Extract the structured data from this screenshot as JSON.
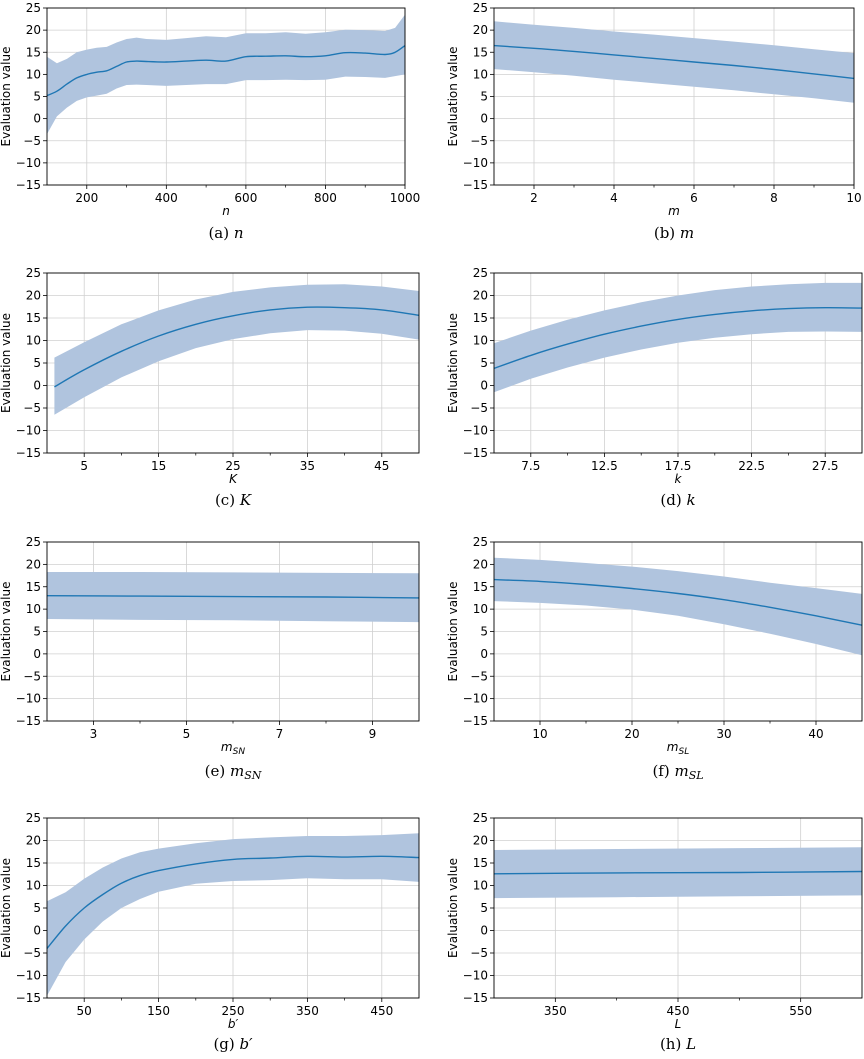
{
  "chart_data": [
    {
      "id": "a",
      "type": "line",
      "ylabel": "Evaluation value",
      "xlabel": "n",
      "caption_prefix": "(a) ",
      "caption_var": "n",
      "xlim": [
        100,
        1000
      ],
      "ylim": [
        -15,
        25
      ],
      "xticks": [
        200,
        400,
        600,
        800,
        1000
      ],
      "xticklabels": [
        "200",
        "400",
        "600",
        "800",
        "1000"
      ],
      "minor_xticks": [
        300,
        500,
        700,
        900
      ],
      "yticks": [
        -15,
        -10,
        -5,
        0,
        5,
        10,
        15,
        20,
        25
      ],
      "yticklabels": [
        "−15",
        "−10",
        "−5",
        "0",
        "5",
        "10",
        "15",
        "20",
        "25"
      ],
      "mean": {
        "x": [
          100,
          125,
          150,
          175,
          200,
          225,
          250,
          275,
          300,
          325,
          350,
          400,
          450,
          500,
          550,
          600,
          650,
          700,
          750,
          800,
          850,
          900,
          950,
          975,
          1000
        ],
        "y": [
          5.2,
          6.2,
          7.8,
          9.2,
          10.0,
          10.5,
          10.8,
          11.8,
          12.8,
          13.0,
          12.9,
          12.8,
          13.0,
          13.2,
          13.0,
          14.0,
          14.1,
          14.2,
          14.0,
          14.2,
          14.9,
          14.8,
          14.5,
          15.0,
          16.5
        ]
      },
      "band": {
        "x": [
          100,
          125,
          150,
          175,
          200,
          225,
          250,
          275,
          300,
          325,
          350,
          400,
          450,
          500,
          550,
          600,
          650,
          700,
          750,
          800,
          850,
          900,
          950,
          975,
          1000
        ],
        "lower": [
          -3.5,
          0.5,
          2.5,
          4.0,
          4.8,
          5.2,
          5.6,
          6.8,
          7.6,
          7.7,
          7.6,
          7.4,
          7.6,
          7.8,
          7.8,
          8.7,
          8.7,
          8.8,
          8.7,
          8.8,
          9.5,
          9.4,
          9.2,
          9.6,
          10.0
        ],
        "upper": [
          14.0,
          12.5,
          13.5,
          15.0,
          15.6,
          16.0,
          16.2,
          17.2,
          18.0,
          18.3,
          18.0,
          17.8,
          18.2,
          18.6,
          18.4,
          19.3,
          19.3,
          19.5,
          19.2,
          19.5,
          20.1,
          20.0,
          19.8,
          20.5,
          23.5
        ]
      }
    },
    {
      "id": "b",
      "type": "line",
      "ylabel": "Evaluation value",
      "xlabel": "m",
      "caption_prefix": "(b) ",
      "caption_var": "m",
      "xlim": [
        1,
        10
      ],
      "ylim": [
        -15,
        25
      ],
      "xticks": [
        2,
        4,
        6,
        8,
        10
      ],
      "xticklabels": [
        "2",
        "4",
        "6",
        "8",
        "10"
      ],
      "minor_xticks": [
        3,
        5,
        7,
        9
      ],
      "yticks": [
        -15,
        -10,
        -5,
        0,
        5,
        10,
        15,
        20,
        25
      ],
      "yticklabels": [
        "−15",
        "−10",
        "−5",
        "0",
        "5",
        "10",
        "15",
        "20",
        "25"
      ],
      "mean": {
        "x": [
          1,
          2,
          3,
          4,
          5,
          6,
          7,
          8,
          9,
          10
        ],
        "y": [
          16.5,
          15.9,
          15.2,
          14.4,
          13.6,
          12.8,
          12.0,
          11.1,
          10.1,
          9.1
        ]
      },
      "band": {
        "x": [
          1,
          2,
          3,
          4,
          5,
          6,
          7,
          8,
          9,
          10
        ],
        "lower": [
          11.2,
          10.5,
          9.7,
          8.8,
          8.0,
          7.2,
          6.4,
          5.5,
          4.6,
          3.6
        ],
        "upper": [
          22.0,
          21.2,
          20.5,
          19.7,
          19.0,
          18.2,
          17.4,
          16.6,
          15.7,
          14.8
        ]
      }
    },
    {
      "id": "c",
      "type": "line",
      "ylabel": "Evaluation value",
      "xlabel": "K",
      "caption_prefix": "(c) ",
      "caption_var": "K",
      "xlim": [
        0,
        50
      ],
      "ylim": [
        -15,
        25
      ],
      "xticks": [
        5,
        15,
        25,
        35,
        45
      ],
      "xticklabels": [
        "5",
        "15",
        "25",
        "35",
        "45"
      ],
      "minor_xticks": [
        10,
        20,
        30,
        40
      ],
      "yticks": [
        -15,
        -10,
        -5,
        0,
        5,
        10,
        15,
        20,
        25
      ],
      "yticklabels": [
        "−15",
        "−10",
        "−5",
        "0",
        "5",
        "10",
        "15",
        "20",
        "25"
      ],
      "mean": {
        "x": [
          1,
          5,
          10,
          15,
          20,
          25,
          30,
          35,
          40,
          45,
          50
        ],
        "y": [
          -0.3,
          3.5,
          7.6,
          11.0,
          13.6,
          15.5,
          16.8,
          17.4,
          17.3,
          16.8,
          15.6
        ]
      },
      "band": {
        "x": [
          1,
          5,
          10,
          15,
          20,
          25,
          30,
          35,
          40,
          45,
          50
        ],
        "lower": [
          -6.5,
          -2.6,
          1.8,
          5.4,
          8.3,
          10.3,
          11.6,
          12.3,
          12.2,
          11.5,
          10.2
        ],
        "upper": [
          6.2,
          9.6,
          13.6,
          16.7,
          19.1,
          20.8,
          21.8,
          22.4,
          22.5,
          22.0,
          21.0
        ]
      }
    },
    {
      "id": "d",
      "type": "line",
      "ylabel": "Evaluation value",
      "xlabel": "k",
      "caption_prefix": "(d) ",
      "caption_var": "k",
      "xlim": [
        5,
        30
      ],
      "ylim": [
        -15,
        25
      ],
      "xticks": [
        7.5,
        12.5,
        17.5,
        22.5,
        27.5
      ],
      "xticklabels": [
        "7.5",
        "12.5",
        "17.5",
        "22.5",
        "27.5"
      ],
      "minor_xticks": [
        10,
        15,
        20,
        25
      ],
      "yticks": [
        -15,
        -10,
        -5,
        0,
        5,
        10,
        15,
        20,
        25
      ],
      "yticklabels": [
        "−15",
        "−10",
        "−5",
        "0",
        "5",
        "10",
        "15",
        "20",
        "25"
      ],
      "mean": {
        "x": [
          5,
          7.5,
          10,
          12.5,
          15,
          17.5,
          20,
          22.5,
          25,
          27.5,
          30
        ],
        "y": [
          3.8,
          6.7,
          9.2,
          11.4,
          13.2,
          14.7,
          15.8,
          16.6,
          17.1,
          17.3,
          17.2
        ]
      },
      "band": {
        "x": [
          5,
          7.5,
          10,
          12.5,
          15,
          17.5,
          20,
          22.5,
          25,
          27.5,
          30
        ],
        "lower": [
          -1.5,
          1.5,
          4.0,
          6.2,
          8.0,
          9.5,
          10.6,
          11.4,
          11.9,
          12.0,
          11.9
        ],
        "upper": [
          9.4,
          12.2,
          14.6,
          16.7,
          18.5,
          20.0,
          21.2,
          22.0,
          22.5,
          22.8,
          22.8
        ]
      }
    },
    {
      "id": "e",
      "type": "line",
      "ylabel": "Evaluation value",
      "xlabel_main": "m",
      "xlabel_sub": "SN",
      "caption_prefix": "(e) ",
      "caption_var": "m",
      "caption_sub": "SN",
      "xlim": [
        2,
        10
      ],
      "ylim": [
        -15,
        25
      ],
      "xticks": [
        3,
        5,
        7,
        9
      ],
      "xticklabels": [
        "3",
        "5",
        "7",
        "9"
      ],
      "minor_xticks": [
        4,
        6,
        8
      ],
      "yticks": [
        -15,
        -10,
        -5,
        0,
        5,
        10,
        15,
        20,
        25
      ],
      "yticklabels": [
        "−15",
        "−10",
        "−5",
        "0",
        "5",
        "10",
        "15",
        "20",
        "25"
      ],
      "mean": {
        "x": [
          2,
          4,
          6,
          8,
          10
        ],
        "y": [
          13.0,
          12.9,
          12.8,
          12.7,
          12.5
        ]
      },
      "band": {
        "x": [
          2,
          4,
          6,
          8,
          10
        ],
        "lower": [
          7.8,
          7.6,
          7.5,
          7.3,
          7.1
        ],
        "upper": [
          18.3,
          18.3,
          18.2,
          18.1,
          18.0
        ]
      }
    },
    {
      "id": "f",
      "type": "line",
      "ylabel": "Evaluation value",
      "xlabel_main": "m",
      "xlabel_sub": "SL",
      "caption_prefix": "(f) ",
      "caption_var": "m",
      "caption_sub": "SL",
      "xlim": [
        5,
        45
      ],
      "ylim": [
        -15,
        25
      ],
      "xticks": [
        10,
        20,
        30,
        40
      ],
      "xticklabels": [
        "10",
        "20",
        "30",
        "40"
      ],
      "minor_xticks": [
        15,
        25,
        35
      ],
      "yticks": [
        -15,
        -10,
        -5,
        0,
        5,
        10,
        15,
        20,
        25
      ],
      "yticklabels": [
        "−15",
        "−10",
        "−5",
        "0",
        "5",
        "10",
        "15",
        "20",
        "25"
      ],
      "mean": {
        "x": [
          5,
          10,
          15,
          20,
          25,
          30,
          35,
          40,
          45
        ],
        "y": [
          16.6,
          16.2,
          15.5,
          14.6,
          13.5,
          12.1,
          10.4,
          8.5,
          6.4
        ]
      },
      "band": {
        "x": [
          5,
          10,
          15,
          20,
          25,
          30,
          35,
          40,
          45
        ],
        "lower": [
          11.8,
          11.4,
          10.8,
          9.9,
          8.5,
          6.6,
          4.5,
          2.2,
          -0.3
        ],
        "upper": [
          21.5,
          21.0,
          20.3,
          19.5,
          18.5,
          17.3,
          15.9,
          14.7,
          13.4
        ]
      }
    },
    {
      "id": "g",
      "type": "line",
      "ylabel": "Evaluation value",
      "xlabel": "b′",
      "caption_prefix": "(g) ",
      "caption_var": "b′",
      "xlim": [
        0,
        500
      ],
      "ylim": [
        -15,
        25
      ],
      "xticks": [
        50,
        150,
        250,
        350,
        450
      ],
      "xticklabels": [
        "50",
        "150",
        "250",
        "350",
        "450"
      ],
      "minor_xticks": [
        100,
        200,
        300,
        400
      ],
      "yticks": [
        -15,
        -10,
        -5,
        0,
        5,
        10,
        15,
        20,
        25
      ],
      "yticklabels": [
        "−15",
        "−10",
        "−5",
        "0",
        "5",
        "10",
        "15",
        "20",
        "25"
      ],
      "mean": {
        "x": [
          0,
          25,
          50,
          75,
          100,
          125,
          150,
          200,
          250,
          300,
          350,
          400,
          450,
          500
        ],
        "y": [
          -4.0,
          1.0,
          5.0,
          8.0,
          10.5,
          12.2,
          13.3,
          14.8,
          15.8,
          16.1,
          16.5,
          16.3,
          16.5,
          16.2
        ]
      },
      "band": {
        "x": [
          0,
          25,
          50,
          75,
          100,
          125,
          150,
          200,
          250,
          300,
          350,
          400,
          450,
          500
        ],
        "lower": [
          -14.5,
          -7.0,
          -2.0,
          2.0,
          5.0,
          7.0,
          8.6,
          10.4,
          11.0,
          11.2,
          11.6,
          11.4,
          11.4,
          10.8
        ],
        "upper": [
          6.5,
          8.5,
          11.5,
          14.0,
          16.0,
          17.4,
          18.2,
          19.4,
          20.3,
          20.7,
          21.0,
          21.0,
          21.2,
          21.6
        ]
      }
    },
    {
      "id": "h",
      "type": "line",
      "ylabel": "Evaluation value",
      "xlabel": "L",
      "caption_prefix": "(h) ",
      "caption_var": "L",
      "xlim": [
        300,
        600
      ],
      "ylim": [
        -15,
        25
      ],
      "xticks": [
        350,
        450,
        550
      ],
      "xticklabels": [
        "350",
        "450",
        "550"
      ],
      "minor_xticks": [
        400,
        500
      ],
      "yticks": [
        -15,
        -10,
        -5,
        0,
        5,
        10,
        15,
        20,
        25
      ],
      "yticklabels": [
        "−15",
        "−10",
        "−5",
        "0",
        "5",
        "10",
        "15",
        "20",
        "25"
      ],
      "mean": {
        "x": [
          300,
          400,
          500,
          600
        ],
        "y": [
          12.6,
          12.8,
          12.9,
          13.1
        ]
      },
      "band": {
        "x": [
          300,
          400,
          500,
          600
        ],
        "lower": [
          7.2,
          7.4,
          7.6,
          7.8
        ],
        "upper": [
          17.9,
          18.1,
          18.3,
          18.5
        ]
      }
    }
  ],
  "style": {
    "line_color": "#1f77b4",
    "band_color": "#b0c4de",
    "grid_color": "#d0d0d0",
    "axis_color": "#000000"
  }
}
